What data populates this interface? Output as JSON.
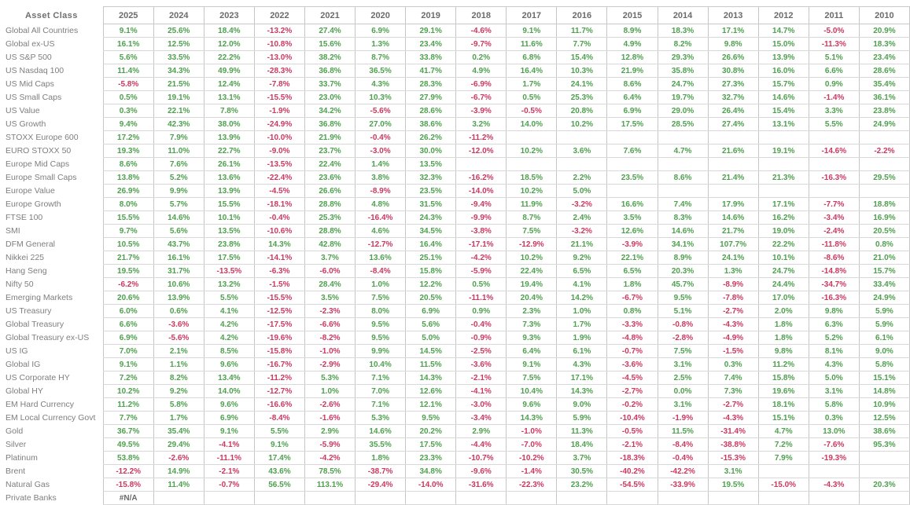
{
  "colors": {
    "positive": "#4EA04E",
    "negative": "#CC3860",
    "label_gray": "#7E7E7E",
    "header_gray": "#6B6B6B",
    "grid_border": "#C6C6C6"
  },
  "chart_data": {
    "type": "table",
    "corner_label": "Asset Class",
    "columns": [
      "2025",
      "2024",
      "2023",
      "2022",
      "2021",
      "2020",
      "2019",
      "2018",
      "2017",
      "2016",
      "2015",
      "2014",
      "2013",
      "2012",
      "2011",
      "2010"
    ],
    "rows": [
      {
        "label": "Global All Countries",
        "values": [
          "9.1%",
          "25.6%",
          "18.4%",
          "-13.2%",
          "27.4%",
          "6.9%",
          "29.1%",
          "-4.6%",
          "9.1%",
          "11.7%",
          "8.9%",
          "18.3%",
          "17.1%",
          "14.7%",
          "-5.0%",
          "20.9%"
        ]
      },
      {
        "label": "Global ex-US",
        "values": [
          "16.1%",
          "12.5%",
          "12.0%",
          "-10.8%",
          "15.6%",
          "1.3%",
          "23.4%",
          "-9.7%",
          "11.6%",
          "7.7%",
          "4.9%",
          "8.2%",
          "9.8%",
          "15.0%",
          "-11.3%",
          "18.3%"
        ]
      },
      {
        "label": "US S&P 500",
        "values": [
          "5.6%",
          "33.5%",
          "22.2%",
          "-13.0%",
          "38.2%",
          "8.7%",
          "33.8%",
          "0.2%",
          "6.8%",
          "15.4%",
          "12.8%",
          "29.3%",
          "26.6%",
          "13.9%",
          "5.1%",
          "23.4%"
        ]
      },
      {
        "label": "US Nasdaq 100",
        "values": [
          "11.4%",
          "34.3%",
          "49.9%",
          "-28.3%",
          "36.8%",
          "36.5%",
          "41.7%",
          "4.9%",
          "16.4%",
          "10.3%",
          "21.9%",
          "35.8%",
          "30.8%",
          "16.0%",
          "6.6%",
          "28.6%"
        ]
      },
      {
        "label": "US Mid Caps",
        "values": [
          "-5.8%",
          "21.5%",
          "12.4%",
          "-7.8%",
          "33.7%",
          "4.3%",
          "28.3%",
          "-6.9%",
          "1.7%",
          "24.1%",
          "8.6%",
          "24.7%",
          "27.3%",
          "15.7%",
          "0.9%",
          "35.4%"
        ]
      },
      {
        "label": "US Small Caps",
        "values": [
          "0.5%",
          "19.1%",
          "13.1%",
          "-15.5%",
          "23.0%",
          "10.3%",
          "27.9%",
          "-6.7%",
          "0.5%",
          "25.3%",
          "6.4%",
          "19.7%",
          "32.7%",
          "14.6%",
          "-1.4%",
          "36.1%"
        ]
      },
      {
        "label": "US Value",
        "values": [
          "0.3%",
          "22.1%",
          "7.8%",
          "-1.9%",
          "34.2%",
          "-5.6%",
          "28.6%",
          "-3.9%",
          "-0.5%",
          "20.8%",
          "6.9%",
          "29.0%",
          "26.4%",
          "15.4%",
          "3.3%",
          "23.8%"
        ]
      },
      {
        "label": "US Growth",
        "values": [
          "9.4%",
          "42.3%",
          "38.0%",
          "-24.9%",
          "36.8%",
          "27.0%",
          "38.6%",
          "3.2%",
          "14.0%",
          "10.2%",
          "17.5%",
          "28.5%",
          "27.4%",
          "13.1%",
          "5.5%",
          "24.9%"
        ]
      },
      {
        "label": "STOXX Europe 600",
        "values": [
          "17.2%",
          "7.9%",
          "13.9%",
          "-10.0%",
          "21.9%",
          "-0.4%",
          "26.2%",
          "-11.2%",
          "",
          "",
          "",
          "",
          "",
          "",
          "",
          ""
        ]
      },
      {
        "label": "EURO STOXX 50",
        "values": [
          "19.3%",
          "11.0%",
          "22.7%",
          "-9.0%",
          "23.7%",
          "-3.0%",
          "30.0%",
          "-12.0%",
          "10.2%",
          "3.6%",
          "7.6%",
          "4.7%",
          "21.6%",
          "19.1%",
          "-14.6%",
          "-2.2%"
        ]
      },
      {
        "label": "Europe Mid Caps",
        "values": [
          "8.6%",
          "7.6%",
          "26.1%",
          "-13.5%",
          "22.4%",
          "1.4%",
          "13.5%",
          "",
          "",
          "",
          "",
          "",
          "",
          "",
          "",
          ""
        ]
      },
      {
        "label": "Europe Small Caps",
        "values": [
          "13.8%",
          "5.2%",
          "13.6%",
          "-22.4%",
          "23.6%",
          "3.8%",
          "32.3%",
          "-16.2%",
          "18.5%",
          "2.2%",
          "23.5%",
          "8.6%",
          "21.4%",
          "21.3%",
          "-16.3%",
          "29.5%"
        ]
      },
      {
        "label": "Europe Value",
        "values": [
          "26.9%",
          "9.9%",
          "13.9%",
          "-4.5%",
          "26.6%",
          "-8.9%",
          "23.5%",
          "-14.0%",
          "10.2%",
          "5.0%",
          "",
          "",
          "",
          "",
          "",
          ""
        ]
      },
      {
        "label": "Europe Growth",
        "values": [
          "8.0%",
          "5.7%",
          "15.5%",
          "-18.1%",
          "28.8%",
          "4.8%",
          "31.5%",
          "-9.4%",
          "11.9%",
          "-3.2%",
          "16.6%",
          "7.4%",
          "17.9%",
          "17.1%",
          "-7.7%",
          "18.8%"
        ]
      },
      {
        "label": "FTSE 100",
        "values": [
          "15.5%",
          "14.6%",
          "10.1%",
          "-0.4%",
          "25.3%",
          "-16.4%",
          "24.3%",
          "-9.9%",
          "8.7%",
          "2.4%",
          "3.5%",
          "8.3%",
          "14.6%",
          "16.2%",
          "-3.4%",
          "16.9%"
        ]
      },
      {
        "label": "SMI",
        "values": [
          "9.7%",
          "5.6%",
          "13.5%",
          "-10.6%",
          "28.8%",
          "4.6%",
          "34.5%",
          "-3.8%",
          "7.5%",
          "-3.2%",
          "12.6%",
          "14.6%",
          "21.7%",
          "19.0%",
          "-2.4%",
          "20.5%"
        ]
      },
      {
        "label": "DFM General",
        "values": [
          "10.5%",
          "43.7%",
          "23.8%",
          "14.3%",
          "42.8%",
          "-12.7%",
          "16.4%",
          "-17.1%",
          "-12.9%",
          "21.1%",
          "-3.9%",
          "34.1%",
          "107.7%",
          "22.2%",
          "-11.8%",
          "0.8%"
        ]
      },
      {
        "label": "Nikkei 225",
        "values": [
          "21.7%",
          "16.1%",
          "17.5%",
          "-14.1%",
          "3.7%",
          "13.6%",
          "25.1%",
          "-4.2%",
          "10.2%",
          "9.2%",
          "22.1%",
          "8.9%",
          "24.1%",
          "10.1%",
          "-8.6%",
          "21.0%"
        ]
      },
      {
        "label": "Hang Seng",
        "values": [
          "19.5%",
          "31.7%",
          "-13.5%",
          "-6.3%",
          "-6.0%",
          "-8.4%",
          "15.8%",
          "-5.9%",
          "22.4%",
          "6.5%",
          "6.5%",
          "20.3%",
          "1.3%",
          "24.7%",
          "-14.8%",
          "15.7%"
        ]
      },
      {
        "label": "Nifty 50",
        "values": [
          "-6.2%",
          "10.6%",
          "13.2%",
          "-1.5%",
          "28.4%",
          "1.0%",
          "12.2%",
          "0.5%",
          "19.4%",
          "4.1%",
          "1.8%",
          "45.7%",
          "-8.9%",
          "24.4%",
          "-34.7%",
          "33.4%"
        ]
      },
      {
        "label": "Emerging Markets",
        "values": [
          "20.6%",
          "13.9%",
          "5.5%",
          "-15.5%",
          "3.5%",
          "7.5%",
          "20.5%",
          "-11.1%",
          "20.4%",
          "14.2%",
          "-6.7%",
          "9.5%",
          "-7.8%",
          "17.0%",
          "-16.3%",
          "24.9%"
        ]
      },
      {
        "label": "US Treasury",
        "values": [
          "6.0%",
          "0.6%",
          "4.1%",
          "-12.5%",
          "-2.3%",
          "8.0%",
          "6.9%",
          "0.9%",
          "2.3%",
          "1.0%",
          "0.8%",
          "5.1%",
          "-2.7%",
          "2.0%",
          "9.8%",
          "5.9%"
        ]
      },
      {
        "label": "Global Treasury",
        "values": [
          "6.6%",
          "-3.6%",
          "4.2%",
          "-17.5%",
          "-6.6%",
          "9.5%",
          "5.6%",
          "-0.4%",
          "7.3%",
          "1.7%",
          "-3.3%",
          "-0.8%",
          "-4.3%",
          "1.8%",
          "6.3%",
          "5.9%"
        ]
      },
      {
        "label": "Global Treasury ex-US",
        "values": [
          "6.9%",
          "-5.6%",
          "4.2%",
          "-19.6%",
          "-8.2%",
          "9.5%",
          "5.0%",
          "-0.9%",
          "9.3%",
          "1.9%",
          "-4.8%",
          "-2.8%",
          "-4.9%",
          "1.8%",
          "5.2%",
          "6.1%"
        ]
      },
      {
        "label": "US IG",
        "values": [
          "7.0%",
          "2.1%",
          "8.5%",
          "-15.8%",
          "-1.0%",
          "9.9%",
          "14.5%",
          "-2.5%",
          "6.4%",
          "6.1%",
          "-0.7%",
          "7.5%",
          "-1.5%",
          "9.8%",
          "8.1%",
          "9.0%"
        ]
      },
      {
        "label": "Global IG",
        "values": [
          "9.1%",
          "1.1%",
          "9.6%",
          "-16.7%",
          "-2.9%",
          "10.4%",
          "11.5%",
          "-3.6%",
          "9.1%",
          "4.3%",
          "-3.6%",
          "3.1%",
          "0.3%",
          "11.2%",
          "4.3%",
          "5.8%"
        ]
      },
      {
        "label": "US Corporate HY",
        "values": [
          "7.2%",
          "8.2%",
          "13.4%",
          "-11.2%",
          "5.3%",
          "7.1%",
          "14.3%",
          "-2.1%",
          "7.5%",
          "17.1%",
          "-4.5%",
          "2.5%",
          "7.4%",
          "15.8%",
          "5.0%",
          "15.1%"
        ]
      },
      {
        "label": "Global HY",
        "values": [
          "10.2%",
          "9.2%",
          "14.0%",
          "-12.7%",
          "1.0%",
          "7.0%",
          "12.6%",
          "-4.1%",
          "10.4%",
          "14.3%",
          "-2.7%",
          "0.0%",
          "7.3%",
          "19.6%",
          "3.1%",
          "14.8%"
        ]
      },
      {
        "label": "EM Hard Currency",
        "values": [
          "11.2%",
          "5.8%",
          "9.6%",
          "-16.6%",
          "-2.6%",
          "7.1%",
          "12.1%",
          "-3.0%",
          "9.6%",
          "9.0%",
          "-0.2%",
          "3.1%",
          "-2.7%",
          "18.1%",
          "5.8%",
          "10.9%"
        ]
      },
      {
        "label": "EM Local Currency Govt",
        "values": [
          "7.7%",
          "1.7%",
          "6.9%",
          "-8.4%",
          "-1.6%",
          "5.3%",
          "9.5%",
          "-3.4%",
          "14.3%",
          "5.9%",
          "-10.4%",
          "-1.9%",
          "-4.3%",
          "15.1%",
          "0.3%",
          "12.5%"
        ]
      },
      {
        "label": "Gold",
        "values": [
          "36.7%",
          "35.4%",
          "9.1%",
          "5.5%",
          "2.9%",
          "14.6%",
          "20.2%",
          "2.9%",
          "-1.0%",
          "11.3%",
          "-0.5%",
          "11.5%",
          "-31.4%",
          "4.7%",
          "13.0%",
          "38.6%"
        ]
      },
      {
        "label": "Silver",
        "values": [
          "49.5%",
          "29.4%",
          "-4.1%",
          "9.1%",
          "-5.9%",
          "35.5%",
          "17.5%",
          "-4.4%",
          "-7.0%",
          "18.4%",
          "-2.1%",
          "-8.4%",
          "-38.8%",
          "7.2%",
          "-7.6%",
          "95.3%"
        ]
      },
      {
        "label": "Platinum",
        "values": [
          "53.8%",
          "-2.6%",
          "-11.1%",
          "17.4%",
          "-4.2%",
          "1.8%",
          "23.3%",
          "-10.7%",
          "-10.2%",
          "3.7%",
          "-18.3%",
          "-0.4%",
          "-15.3%",
          "7.9%",
          "-19.3%",
          ""
        ]
      },
      {
        "label": "Brent",
        "values": [
          "-12.2%",
          "14.9%",
          "-2.1%",
          "43.6%",
          "78.5%",
          "-38.7%",
          "34.8%",
          "-9.6%",
          "-1.4%",
          "30.5%",
          "-40.2%",
          "-42.2%",
          "3.1%",
          "",
          "",
          ""
        ]
      },
      {
        "label": "Natural Gas",
        "values": [
          "-15.8%",
          "11.4%",
          "-0.7%",
          "56.5%",
          "113.1%",
          "-29.4%",
          "-14.0%",
          "-31.6%",
          "-22.3%",
          "23.2%",
          "-54.5%",
          "-33.9%",
          "19.5%",
          "-15.0%",
          "-4.3%",
          "20.3%"
        ]
      },
      {
        "label": "Private Banks",
        "values": [
          "#N/A",
          "",
          "",
          "",
          "",
          "",
          "",
          "",
          "",
          "",
          "",
          "",
          "",
          "",
          "",
          ""
        ]
      }
    ]
  }
}
